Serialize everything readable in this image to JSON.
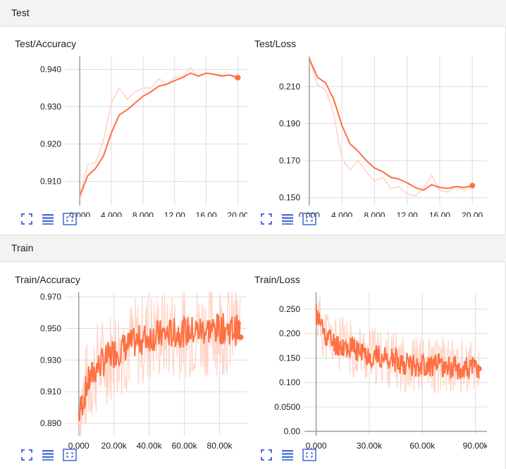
{
  "sections": [
    {
      "name": "Test"
    },
    {
      "name": "Train"
    }
  ],
  "icons": {
    "expand": "fullscreen-icon",
    "data": "data-list-icon",
    "fit": "fit-domain-icon"
  },
  "colors": {
    "line": "#ff7043",
    "line_smoothed": "#f4511e",
    "raw": "#ffd3c4",
    "axis": "#9e9e9e",
    "grid": "#dcdcdc",
    "icon": "#4b6fd6"
  },
  "charts": [
    {
      "title": "Test/Accuracy",
      "chart_data": {
        "type": "line",
        "title": "Test/Accuracy",
        "xlim": [
          -1.8,
          21.2
        ],
        "ylim": [
          0.9035,
          0.9435
        ],
        "xticks": [
          0,
          4,
          8,
          12,
          16,
          20
        ],
        "xtick_labels": [
          "0.000",
          "4.000",
          "8.000",
          "12.00",
          "16.00",
          "20.00"
        ],
        "yticks": [
          0.91,
          0.92,
          0.93,
          0.94
        ],
        "ytick_labels": [
          "0.910",
          "0.920",
          "0.930",
          "0.940"
        ],
        "raw": {
          "x": [
            0,
            1,
            2,
            3,
            4,
            5,
            6,
            7,
            8,
            9,
            10,
            11,
            12,
            13,
            14,
            15,
            16,
            17,
            18,
            19,
            20
          ],
          "y": [
            0.906,
            0.9145,
            0.915,
            0.921,
            0.931,
            0.935,
            0.932,
            0.934,
            0.935,
            0.935,
            0.9375,
            0.936,
            0.938,
            0.938,
            0.9405,
            0.938,
            0.939,
            0.9385,
            0.938,
            0.9385,
            0.937
          ]
        },
        "smoothed": {
          "x": [
            0,
            1,
            2,
            3,
            4,
            5,
            6,
            7,
            8,
            9,
            10,
            11,
            12,
            13,
            14,
            15,
            16,
            17,
            18,
            19,
            20
          ],
          "y": [
            0.906,
            0.9115,
            0.9135,
            0.9168,
            0.923,
            0.9278,
            0.9292,
            0.931,
            0.9328,
            0.934,
            0.9355,
            0.936,
            0.937,
            0.9378,
            0.939,
            0.9382,
            0.939,
            0.9387,
            0.9383,
            0.9385,
            0.9378
          ]
        },
        "grid": true
      }
    },
    {
      "title": "Test/Loss",
      "chart_data": {
        "type": "line",
        "title": "Test/Loss",
        "xlim": [
          -0.6,
          21.8
        ],
        "ylim": [
          0.1457,
          0.2263
        ],
        "xticks": [
          0,
          4,
          8,
          12,
          16,
          20
        ],
        "xtick_labels": [
          "0.000",
          "4.000",
          "8.000",
          "12.00",
          "16.00",
          "20.00"
        ],
        "yticks": [
          0.15,
          0.17,
          0.19,
          0.21
        ],
        "ytick_labels": [
          "0.150",
          "0.170",
          "0.190",
          "0.210"
        ],
        "raw": {
          "x": [
            0,
            1,
            2,
            3,
            4,
            5,
            6,
            7,
            8,
            9,
            10,
            11,
            12,
            13,
            14,
            15,
            16,
            17,
            18,
            19,
            20
          ],
          "y": [
            0.225,
            0.211,
            0.208,
            0.195,
            0.171,
            0.165,
            0.17,
            0.164,
            0.159,
            0.161,
            0.155,
            0.156,
            0.152,
            0.151,
            0.155,
            0.162,
            0.154,
            0.153,
            0.156,
            0.154,
            0.156
          ]
        },
        "smoothed": {
          "x": [
            0,
            1,
            2,
            3,
            4,
            5,
            6,
            7,
            8,
            9,
            10,
            11,
            12,
            13,
            14,
            15,
            16,
            17,
            18,
            19,
            20
          ],
          "y": [
            0.225,
            0.215,
            0.212,
            0.203,
            0.189,
            0.179,
            0.175,
            0.17,
            0.166,
            0.164,
            0.161,
            0.16,
            0.158,
            0.1555,
            0.154,
            0.157,
            0.1555,
            0.155,
            0.156,
            0.1555,
            0.1565
          ]
        },
        "grid": true
      }
    },
    {
      "title": "Train/Accuracy",
      "chart_data": {
        "type": "line",
        "title": "Train/Accuracy",
        "xlim": [
          -7.5,
          95.8
        ],
        "ylim": [
          0.882,
          0.973
        ],
        "xticks": [
          0,
          20,
          40,
          60,
          80
        ],
        "xtick_labels": [
          "0.000",
          "20.00k",
          "40.00k",
          "60.00k",
          "80.00k"
        ],
        "yticks": [
          0.89,
          0.91,
          0.93,
          0.95,
          0.97
        ],
        "ytick_labels": [
          "0.890",
          "0.910",
          "0.930",
          "0.950",
          "0.970"
        ],
        "noisy": {
          "x_end": 92,
          "trend": [
            [
              0,
              0.895
            ],
            [
              5,
              0.915
            ],
            [
              10,
              0.925
            ],
            [
              20,
              0.935
            ],
            [
              30,
              0.94
            ],
            [
              40,
              0.945
            ],
            [
              60,
              0.948
            ],
            [
              80,
              0.95
            ],
            [
              92,
              0.949
            ]
          ],
          "raw_amp": 0.03,
          "smooth_amp": 0.01,
          "seed": 7
        },
        "end_point": [
          92,
          0.9445
        ],
        "grid": true
      }
    },
    {
      "title": "Train/Loss",
      "chart_data": {
        "type": "line",
        "title": "Train/Loss",
        "xlim": [
          -6.6,
          96.5
        ],
        "ylim": [
          -0.0093,
          0.2845
        ],
        "xticks": [
          0,
          30,
          60,
          90
        ],
        "xtick_labels": [
          "0.000",
          "30.00k",
          "60.00k",
          "90.00k"
        ],
        "yticks": [
          0,
          0.05,
          0.1,
          0.15,
          0.2,
          0.25
        ],
        "ytick_labels": [
          "0.00",
          "0.0500",
          "0.100",
          "0.150",
          "0.200",
          "0.250"
        ],
        "noisy": {
          "x_end": 92,
          "trend": [
            [
              0,
              0.24
            ],
            [
              5,
              0.2
            ],
            [
              10,
              0.18
            ],
            [
              20,
              0.17
            ],
            [
              30,
              0.155
            ],
            [
              40,
              0.15
            ],
            [
              50,
              0.14
            ],
            [
              60,
              0.135
            ],
            [
              70,
              0.135
            ],
            [
              80,
              0.13
            ],
            [
              92,
              0.128
            ]
          ],
          "raw_amp": 0.06,
          "smooth_amp": 0.025,
          "seed": 11
        },
        "end_point": [
          92,
          0.128
        ],
        "grid": true
      }
    }
  ]
}
